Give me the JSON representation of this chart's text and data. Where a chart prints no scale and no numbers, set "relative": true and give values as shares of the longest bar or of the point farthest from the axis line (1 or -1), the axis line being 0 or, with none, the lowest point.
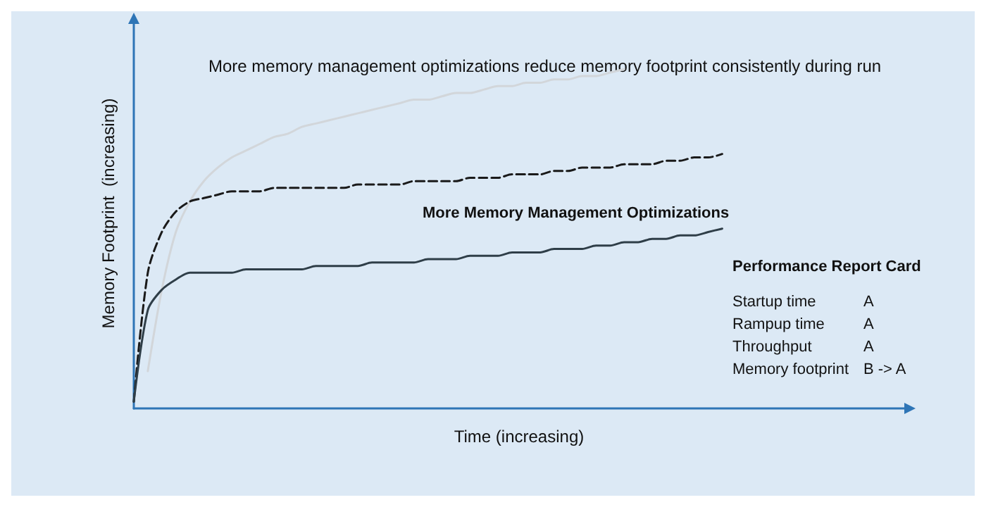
{
  "chart_data": {
    "type": "line",
    "relative": true,
    "xlabel": "Time (increasing)",
    "ylabel": "Memory Footprint  (increasing)",
    "categories": [
      null,
      null,
      null,
      null,
      null,
      null,
      null,
      null,
      null,
      null,
      null,
      null,
      null,
      null,
      null,
      null,
      null,
      null,
      null,
      null,
      null,
      null,
      null,
      null,
      null,
      null,
      null,
      null,
      null,
      null,
      null,
      null,
      null,
      null,
      null,
      null,
      null,
      null,
      null,
      null,
      null,
      null,
      null,
      null,
      null,
      null,
      null,
      null,
      null,
      null,
      null,
      null,
      null,
      null,
      null,
      null
    ],
    "series": [
      {
        "color": "#d2d6da",
        "line_style": "solid",
        "values": [
          null,
          0.11,
          0.35,
          0.52,
          0.61,
          0.67,
          0.71,
          0.74,
          0.76,
          0.78,
          0.8,
          0.81,
          0.83,
          0.84,
          0.85,
          0.86,
          0.87,
          0.88,
          0.89,
          0.9,
          0.91,
          0.91,
          0.92,
          0.93,
          0.93,
          0.94,
          0.95,
          0.95,
          0.96,
          0.96,
          0.97,
          0.97,
          0.98,
          0.98,
          0.99,
          1.0,
          null,
          null,
          null,
          null,
          null,
          null,
          null,
          null,
          null,
          null,
          null,
          null,
          null,
          null,
          null,
          null,
          null,
          null,
          null,
          null
        ]
      },
      {
        "color": "#1a1a1a",
        "line_style": "dashed",
        "values": [
          0.02,
          0.4,
          0.52,
          0.58,
          0.61,
          0.62,
          0.63,
          0.64,
          0.64,
          0.64,
          0.65,
          0.65,
          0.65,
          0.65,
          0.65,
          0.65,
          0.66,
          0.66,
          0.66,
          0.66,
          0.67,
          0.67,
          0.67,
          0.67,
          0.68,
          0.68,
          0.68,
          0.69,
          0.69,
          0.69,
          0.7,
          0.7,
          0.71,
          0.71,
          0.71,
          0.72,
          0.72,
          0.72,
          0.73,
          0.73,
          0.74,
          0.74,
          0.75,
          null,
          null,
          null,
          null,
          null,
          null,
          null,
          null,
          null,
          null,
          null,
          null,
          null
        ]
      },
      {
        "color": "#2f3e48",
        "line_style": "solid",
        "values": [
          0.02,
          0.29,
          0.35,
          0.38,
          0.4,
          0.4,
          0.4,
          0.4,
          0.41,
          0.41,
          0.41,
          0.41,
          0.41,
          0.42,
          0.42,
          0.42,
          0.42,
          0.43,
          0.43,
          0.43,
          0.43,
          0.44,
          0.44,
          0.44,
          0.45,
          0.45,
          0.45,
          0.46,
          0.46,
          0.46,
          0.47,
          0.47,
          0.47,
          0.48,
          0.48,
          0.49,
          0.49,
          0.5,
          0.5,
          0.51,
          0.51,
          0.52,
          0.53,
          null,
          null,
          null,
          null,
          null,
          null,
          null,
          null,
          null,
          null,
          null,
          null,
          null
        ]
      }
    ],
    "marker": "none",
    "grid": false,
    "annotations": [
      "More memory management optimizations reduce memory footprint consistently during run",
      "More Memory Management Optimizations",
      "Performance Report Card",
      "Startup time",
      "A",
      "Rampup time",
      "A",
      "Throughput",
      "A",
      "Memory footprint",
      "B -> A"
    ]
  }
}
